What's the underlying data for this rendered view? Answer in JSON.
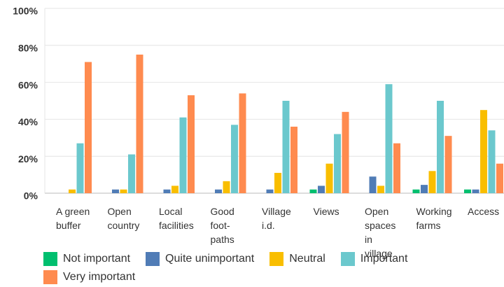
{
  "chart_data": {
    "type": "bar",
    "categories": [
      "A green buffer",
      "Open country",
      "Local facilities",
      "Good foot-paths",
      "Village i.d.",
      "Views",
      "Open spaces in village",
      "Working farms",
      "Access"
    ],
    "series": [
      {
        "name": "Not important",
        "color": "#00bf6f",
        "values": [
          0,
          0,
          0,
          0,
          0,
          2,
          0,
          2,
          2
        ]
      },
      {
        "name": "Quite unimportant",
        "color": "#507cb6",
        "values": [
          0,
          2,
          2,
          2,
          2,
          4,
          9,
          4.5,
          2
        ]
      },
      {
        "name": "Neutral",
        "color": "#f9be00",
        "values": [
          2,
          2,
          4,
          6.5,
          11,
          16,
          4,
          12,
          45
        ]
      },
      {
        "name": "Important",
        "color": "#6bc8cd",
        "values": [
          27,
          21,
          41,
          37,
          50,
          32,
          59,
          50,
          34
        ]
      },
      {
        "name": "Very important",
        "color": "#ff8b4f",
        "values": [
          71,
          75,
          53,
          54,
          36,
          44,
          27,
          31,
          16
        ]
      }
    ],
    "ylim": [
      0,
      100
    ],
    "yticks": [
      {
        "value": 0,
        "label": "0%"
      },
      {
        "value": 20,
        "label": "20%"
      },
      {
        "value": 40,
        "label": "40%"
      },
      {
        "value": 60,
        "label": "60%"
      },
      {
        "value": 80,
        "label": "80%"
      },
      {
        "value": 100,
        "label": "100%"
      }
    ],
    "grid": true
  }
}
